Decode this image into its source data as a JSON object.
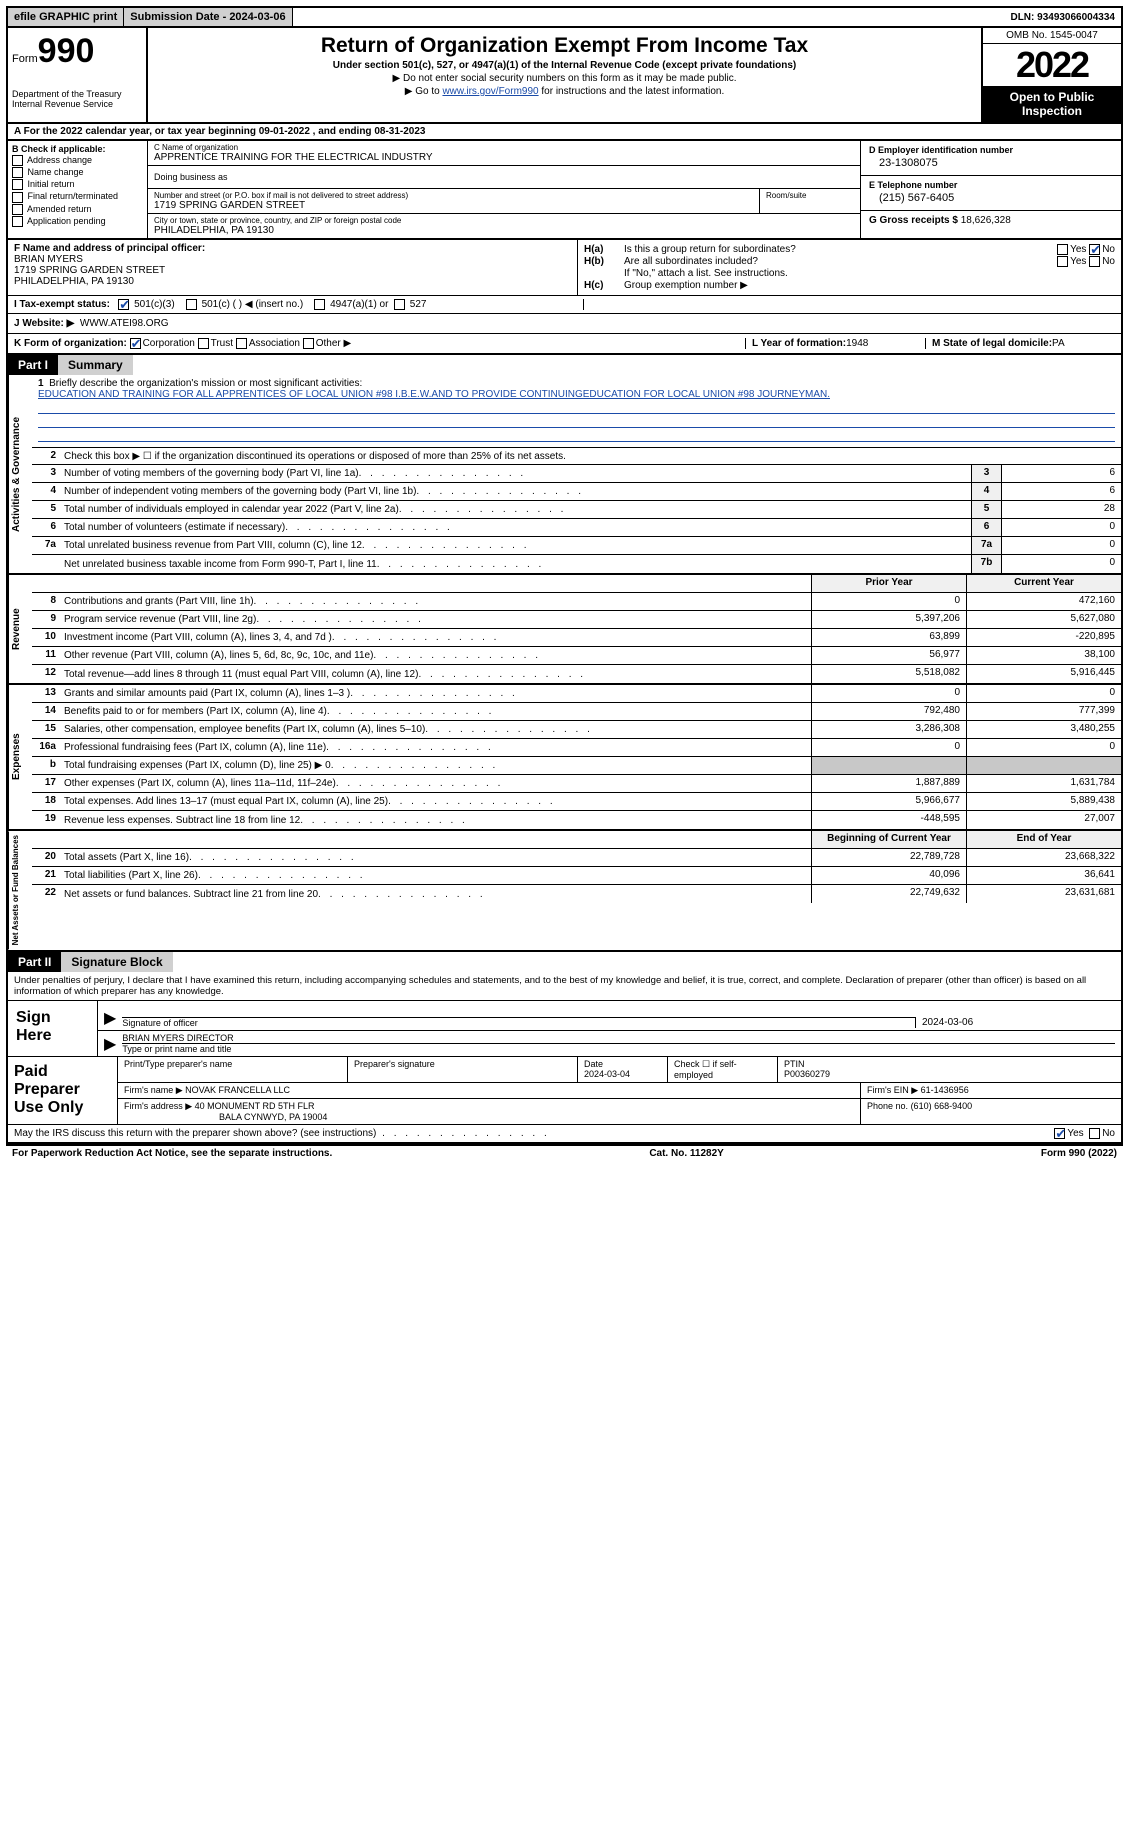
{
  "topbar": {
    "efile": "efile GRAPHIC print",
    "submission": "Submission Date - 2024-03-06",
    "dln": "DLN: 93493066004334"
  },
  "header": {
    "form_prefix": "Form",
    "form_num": "990",
    "dept": "Department of the Treasury\nInternal Revenue Service",
    "title": "Return of Organization Exempt From Income Tax",
    "subtitle": "Under section 501(c), 527, or 4947(a)(1) of the Internal Revenue Code (except private foundations)",
    "note1": "▶ Do not enter social security numbers on this form as it may be made public.",
    "note2_pre": "▶ Go to ",
    "note2_link": "www.irs.gov/Form990",
    "note2_post": " for instructions and the latest information.",
    "omb": "OMB No. 1545-0047",
    "year": "2022",
    "open": "Open to Public Inspection"
  },
  "row_a": {
    "text": "A For the 2022 calendar year, or tax year beginning 09-01-2022    , and ending 08-31-2023"
  },
  "col_b": {
    "label": "B Check if applicable:",
    "opts": [
      "Address change",
      "Name change",
      "Initial return",
      "Final return/terminated",
      "Amended return",
      "Application pending"
    ]
  },
  "col_c": {
    "name_lbl": "C Name of organization",
    "name": "APPRENTICE TRAINING FOR THE ELECTRICAL INDUSTRY",
    "dba_lbl": "Doing business as",
    "street_lbl": "Number and street (or P.O. box if mail is not delivered to street address)",
    "street": "1719 SPRING GARDEN STREET",
    "suite_lbl": "Room/suite",
    "city_lbl": "City or town, state or province, country, and ZIP or foreign postal code",
    "city": "PHILADELPHIA, PA  19130"
  },
  "col_d": {
    "ein_lbl": "D Employer identification number",
    "ein": "23-1308075",
    "phone_lbl": "E Telephone number",
    "phone": "(215) 567-6405",
    "gross_lbl": "G Gross receipts $",
    "gross": "18,626,328"
  },
  "col_f": {
    "lbl": "F  Name and address of principal officer:",
    "name": "BRIAN MYERS",
    "addr1": "1719 SPRING GARDEN STREET",
    "addr2": "PHILADELPHIA, PA  19130"
  },
  "col_h": {
    "ha_lbl": "H(a)",
    "ha_q": "Is this a group return for subordinates?",
    "hb_lbl": "H(b)",
    "hb_q": "Are all subordinates included?",
    "hb_note": "If \"No,\" attach a list. See instructions.",
    "hc_lbl": "H(c)",
    "hc_q": "Group exemption number ▶"
  },
  "row_i": {
    "lbl": "I   Tax-exempt status:",
    "o1": "501(c)(3)",
    "o2": "501(c) (   ) ◀ (insert no.)",
    "o3": "4947(a)(1) or",
    "o4": "527"
  },
  "row_j": {
    "lbl": "J   Website: ▶",
    "val": "WWW.ATEI98.ORG"
  },
  "row_k": {
    "k_lbl": "K Form of organization:",
    "k_opts": [
      "Corporation",
      "Trust",
      "Association",
      "Other ▶"
    ],
    "l_lbl": "L Year of formation:",
    "l_val": "1948",
    "m_lbl": "M State of legal domicile:",
    "m_val": "PA"
  },
  "part1": {
    "hdr": "Part I",
    "title": "Summary"
  },
  "summary": {
    "ag_label": "Activities & Governance",
    "rev_label": "Revenue",
    "exp_label": "Expenses",
    "na_label": "Net Assets or Fund Balances",
    "line1_lbl": "Briefly describe the organization's mission or most significant activities:",
    "line1_txt": "EDUCATION AND TRAINING FOR ALL APPRENTICES OF LOCAL UNION #98 I.B.E.W.AND TO PROVIDE CONTINUINGEDUCATION FOR LOCAL UNION #98 JOURNEYMAN.",
    "line2": "Check this box ▶ ☐  if the organization discontinued its operations or disposed of more than 25% of its net assets.",
    "lines_ag": [
      {
        "n": "3",
        "d": "Number of voting members of the governing body (Part VI, line 1a)",
        "bn": "3",
        "v": "6"
      },
      {
        "n": "4",
        "d": "Number of independent voting members of the governing body (Part VI, line 1b)",
        "bn": "4",
        "v": "6"
      },
      {
        "n": "5",
        "d": "Total number of individuals employed in calendar year 2022 (Part V, line 2a)",
        "bn": "5",
        "v": "28"
      },
      {
        "n": "6",
        "d": "Total number of volunteers (estimate if necessary)",
        "bn": "6",
        "v": "0"
      },
      {
        "n": "7a",
        "d": "Total unrelated business revenue from Part VIII, column (C), line 12",
        "bn": "7a",
        "v": "0"
      },
      {
        "n": "",
        "d": "Net unrelated business taxable income from Form 990-T, Part I, line 11",
        "bn": "7b",
        "v": "0"
      }
    ],
    "hdr_prior": "Prior Year",
    "hdr_curr": "Current Year",
    "lines_rev": [
      {
        "n": "8",
        "d": "Contributions and grants (Part VIII, line 1h)",
        "p": "0",
        "c": "472,160"
      },
      {
        "n": "9",
        "d": "Program service revenue (Part VIII, line 2g)",
        "p": "5,397,206",
        "c": "5,627,080"
      },
      {
        "n": "10",
        "d": "Investment income (Part VIII, column (A), lines 3, 4, and 7d )",
        "p": "63,899",
        "c": "-220,895"
      },
      {
        "n": "11",
        "d": "Other revenue (Part VIII, column (A), lines 5, 6d, 8c, 9c, 10c, and 11e)",
        "p": "56,977",
        "c": "38,100"
      },
      {
        "n": "12",
        "d": "Total revenue—add lines 8 through 11 (must equal Part VIII, column (A), line 12)",
        "p": "5,518,082",
        "c": "5,916,445"
      }
    ],
    "lines_exp": [
      {
        "n": "13",
        "d": "Grants and similar amounts paid (Part IX, column (A), lines 1–3 )",
        "p": "0",
        "c": "0"
      },
      {
        "n": "14",
        "d": "Benefits paid to or for members (Part IX, column (A), line 4)",
        "p": "792,480",
        "c": "777,399"
      },
      {
        "n": "15",
        "d": "Salaries, other compensation, employee benefits (Part IX, column (A), lines 5–10)",
        "p": "3,286,308",
        "c": "3,480,255"
      },
      {
        "n": "16a",
        "d": "Professional fundraising fees (Part IX, column (A), line 11e)",
        "p": "0",
        "c": "0"
      },
      {
        "n": "b",
        "d": "Total fundraising expenses (Part IX, column (D), line 25) ▶ 0",
        "p": "",
        "c": "",
        "shaded": true
      },
      {
        "n": "17",
        "d": "Other expenses (Part IX, column (A), lines 11a–11d, 11f–24e)",
        "p": "1,887,889",
        "c": "1,631,784"
      },
      {
        "n": "18",
        "d": "Total expenses. Add lines 13–17 (must equal Part IX, column (A), line 25)",
        "p": "5,966,677",
        "c": "5,889,438"
      },
      {
        "n": "19",
        "d": "Revenue less expenses. Subtract line 18 from line 12",
        "p": "-448,595",
        "c": "27,007"
      }
    ],
    "hdr_begin": "Beginning of Current Year",
    "hdr_end": "End of Year",
    "lines_na": [
      {
        "n": "20",
        "d": "Total assets (Part X, line 16)",
        "p": "22,789,728",
        "c": "23,668,322"
      },
      {
        "n": "21",
        "d": "Total liabilities (Part X, line 26)",
        "p": "40,096",
        "c": "36,641"
      },
      {
        "n": "22",
        "d": "Net assets or fund balances. Subtract line 21 from line 20",
        "p": "22,749,632",
        "c": "23,631,681"
      }
    ]
  },
  "part2": {
    "hdr": "Part II",
    "title": "Signature Block",
    "declare": "Under penalties of perjury, I declare that I have examined this return, including accompanying schedules and statements, and to the best of my knowledge and belief, it is true, correct, and complete. Declaration of preparer (other than officer) is based on all information of which preparer has any knowledge."
  },
  "sign": {
    "lbl": "Sign Here",
    "sig_lbl": "Signature of officer",
    "date": "2024-03-06",
    "name": "BRIAN MYERS  DIRECTOR",
    "name_lbl": "Type or print name and title"
  },
  "prep": {
    "lbl": "Paid Preparer Use Only",
    "c1": "Print/Type preparer's name",
    "c2": "Preparer's signature",
    "c3_lbl": "Date",
    "c3": "2024-03-04",
    "c4": "Check ☐ if self-employed",
    "c5_lbl": "PTIN",
    "c5": "P00360279",
    "firm_lbl": "Firm's name     ▶",
    "firm": "NOVAK FRANCELLA LLC",
    "ein_lbl": "Firm's EIN ▶",
    "ein": "61-1436956",
    "addr_lbl": "Firm's address ▶",
    "addr1": "40 MONUMENT RD 5TH FLR",
    "addr2": "BALA CYNWYD, PA  19004",
    "phone_lbl": "Phone no.",
    "phone": "(610) 668-9400"
  },
  "footer": {
    "discuss": "May the IRS discuss this return with the preparer shown above? (see instructions)",
    "paperwork": "For Paperwork Reduction Act Notice, see the separate instructions.",
    "cat": "Cat. No. 11282Y",
    "form": "Form 990 (2022)"
  }
}
